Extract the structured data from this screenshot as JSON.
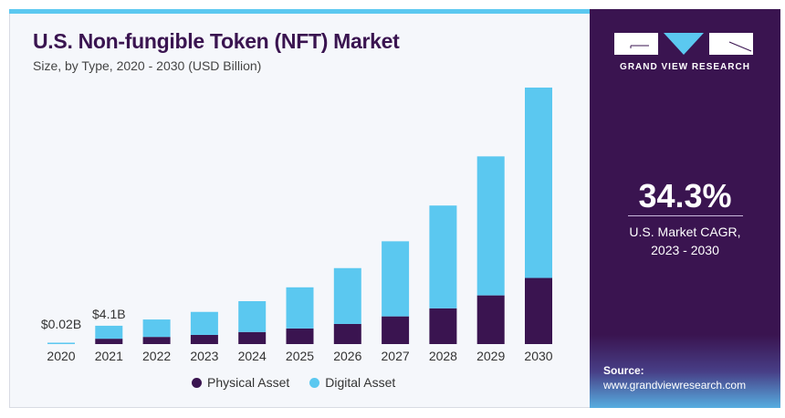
{
  "header": {
    "title": "U.S. Non-fungible Token (NFT) Market",
    "subtitle": "Size, by Type, 2020 - 2030 (USD Billion)"
  },
  "brand": {
    "name": "GRAND VIEW RESEARCH"
  },
  "cagr": {
    "value": "34.3%",
    "label_line1": "U.S. Market CAGR,",
    "label_line2": "2023 - 2030"
  },
  "source": {
    "label": "Source:",
    "url": "www.grandviewresearch.com"
  },
  "colors": {
    "physical": "#3a1450",
    "digital": "#5bc8f0",
    "accent": "#3a1450"
  },
  "chart_data": {
    "type": "bar",
    "stacked": true,
    "title": "U.S. Non-fungible Token (NFT) Market",
    "subtitle": "Size, by Type, 2020 - 2030 (USD Billion)",
    "xlabel": "",
    "ylabel": "USD Billion",
    "categories": [
      "2020",
      "2021",
      "2022",
      "2023",
      "2024",
      "2025",
      "2026",
      "2027",
      "2028",
      "2029",
      "2030"
    ],
    "series": [
      {
        "name": "Physical Asset",
        "values": [
          0.005,
          1.2,
          1.6,
          2.05,
          2.7,
          3.5,
          4.5,
          6.2,
          8.0,
          10.9,
          14.8
        ]
      },
      {
        "name": "Digital Asset",
        "values": [
          0.015,
          2.9,
          3.9,
          5.15,
          6.9,
          9.2,
          12.5,
          16.8,
          23.0,
          31.1,
          42.6
        ]
      }
    ],
    "annotations": [
      {
        "category": "2020",
        "text": "$0.02B"
      },
      {
        "category": "2021",
        "text": "$4.1B"
      }
    ],
    "ylim": [
      0,
      58
    ],
    "grid": false,
    "legend": "bottom"
  }
}
